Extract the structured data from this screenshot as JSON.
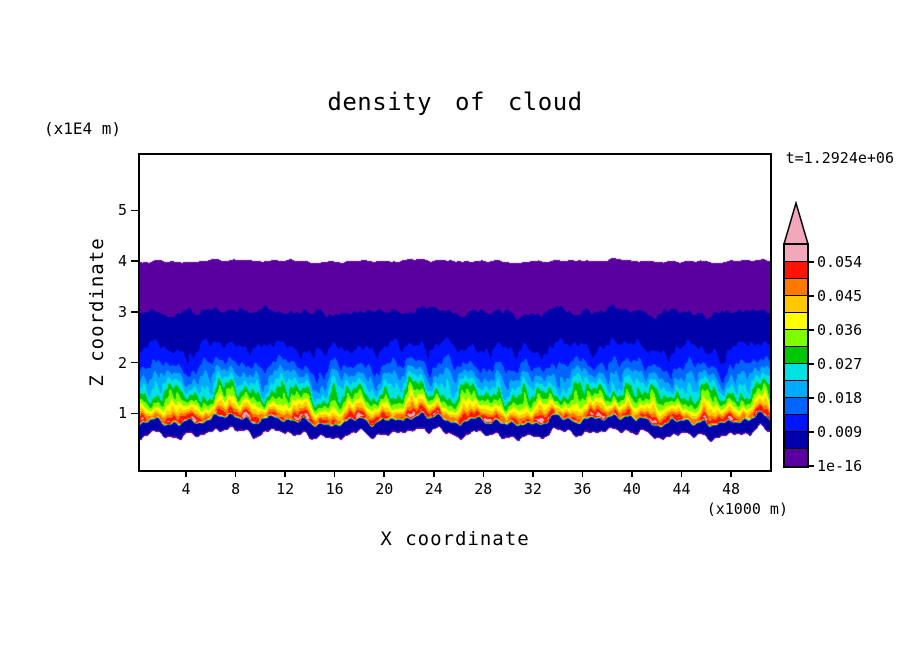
{
  "chart_data": {
    "type": "heatmap",
    "title": "density of cloud",
    "xlabel": "X coordinate",
    "x_unit": "(x1000 m)",
    "ylabel": "Z coordinate",
    "y_unit": "(x1E4 m)",
    "annotation": "t=1.2924e+06",
    "xlim": [
      0,
      51
    ],
    "ylim": [
      0,
      6.1
    ],
    "x_ticks": [
      4,
      8,
      12,
      16,
      20,
      24,
      28,
      32,
      36,
      40,
      44,
      48
    ],
    "y_ticks": [
      1,
      2,
      3,
      4,
      5
    ],
    "grid": false,
    "background": "#ffffff",
    "frame_color": "#000000",
    "colorbar": {
      "position": "right",
      "level_min": 1e-16,
      "level_step": 0.0045,
      "tick_labels": [
        "1e-16",
        "0.009",
        "0.018",
        "0.027",
        "0.036",
        "0.045",
        "0.054"
      ],
      "colors": [
        "#5a00a0",
        "#0000aa",
        "#0014ff",
        "#0064ff",
        "#00aaff",
        "#00e1e1",
        "#00c800",
        "#7dff00",
        "#ffff00",
        "#ffc800",
        "#ff7800",
        "#ff1400"
      ],
      "overflow_color": "#f2a8ba",
      "below_min_color": "#ffffff"
    },
    "field": {
      "description": "Horizontally stratified cloud-density field: white clear air above z=4 (x1E4 m), low-density violet/navy layers from z=4 down to about z=2, increasingly dense blue/cyan/green/yellow layers below, a high-density red band near z=0.95 with pink (>0.054) patches, a thin navy band near z=0.7, and clear air below the cloud base.",
      "cloud_top_z": 4.0,
      "cloud_base_z": 0.6,
      "peak_density_z": 0.93,
      "peak_density": 0.0515,
      "z_profile": [
        [
          0.0,
          0
        ],
        [
          0.6,
          0
        ],
        [
          0.64,
          0.006
        ],
        [
          0.8,
          0.007
        ],
        [
          0.855,
          0.0078
        ],
        [
          0.885,
          0.048
        ],
        [
          0.93,
          0.0515
        ],
        [
          1.0,
          0.047
        ],
        [
          1.05,
          0.0425
        ],
        [
          1.12,
          0.0385
        ],
        [
          1.22,
          0.034
        ],
        [
          1.32,
          0.0295
        ],
        [
          1.47,
          0.0255
        ],
        [
          1.62,
          0.0215
        ],
        [
          1.8,
          0.017
        ],
        [
          2.0,
          0.0125
        ],
        [
          2.3,
          0.009
        ],
        [
          2.7,
          0.006
        ],
        [
          3.03,
          0.0044
        ],
        [
          3.6,
          0.0028
        ],
        [
          3.96,
          0.0012
        ],
        [
          4.01,
          0
        ]
      ]
    }
  }
}
